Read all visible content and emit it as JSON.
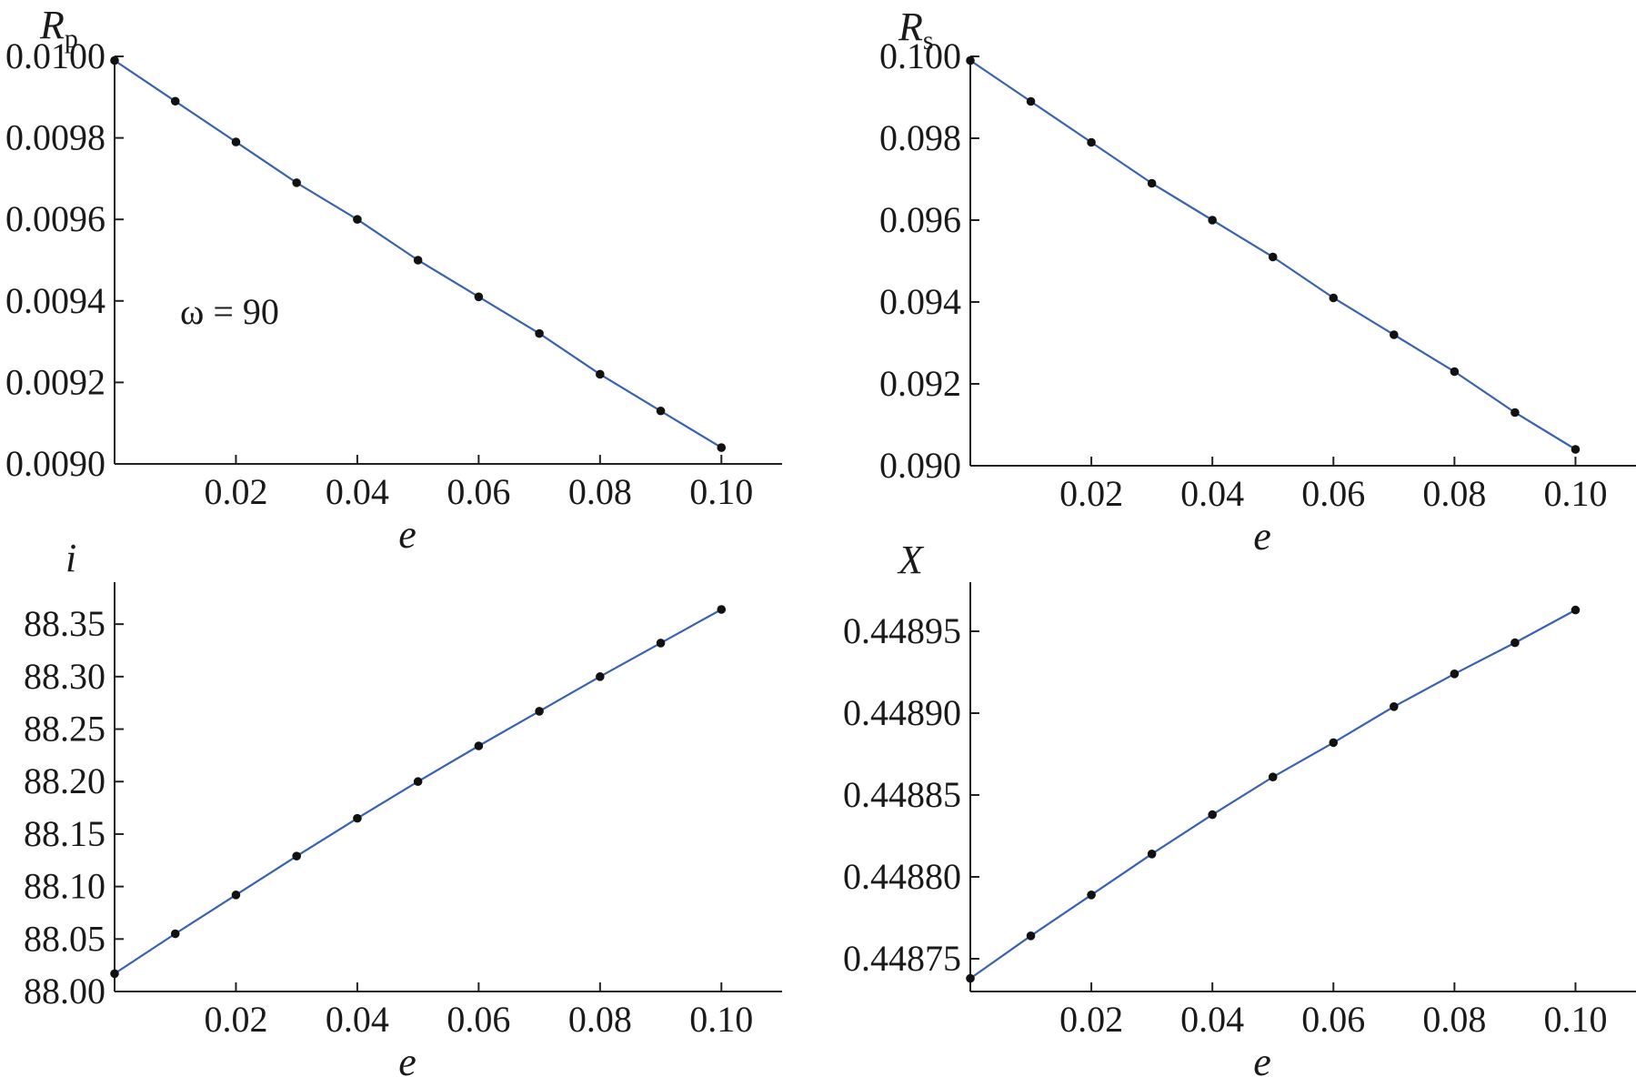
{
  "chart_data": [
    {
      "type": "line",
      "ylabel": "R",
      "ylabel_sub": "p",
      "xlabel": "e",
      "annotation": "ω = 90",
      "xlim": [
        0,
        0.11
      ],
      "ylim": [
        0.009,
        0.01
      ],
      "xticks": [
        0.02,
        0.04,
        0.06,
        0.08,
        0.1
      ],
      "xtick_labels": [
        "0.02",
        "0.04",
        "0.06",
        "0.08",
        "0.10"
      ],
      "yticks": [
        0.009,
        0.0092,
        0.0094,
        0.0096,
        0.0098,
        0.01
      ],
      "ytick_labels": [
        "0.0090",
        "0.0092",
        "0.0094",
        "0.0096",
        "0.0098",
        "0.0100"
      ],
      "series": [
        {
          "color": "#3a62b3",
          "x": [
            0.0,
            0.01,
            0.02,
            0.03,
            0.04,
            0.05,
            0.06,
            0.07,
            0.08,
            0.09,
            0.1
          ],
          "values": [
            0.00999,
            0.00989,
            0.00979,
            0.00969,
            0.0096,
            0.0095,
            0.00941,
            0.00932,
            0.00922,
            0.00913,
            0.00904
          ]
        }
      ]
    },
    {
      "type": "line",
      "ylabel": "R",
      "ylabel_sub": "s",
      "xlabel": "e",
      "xlim": [
        0,
        0.11
      ],
      "ylim": [
        0.09,
        0.1
      ],
      "xticks": [
        0.02,
        0.04,
        0.06,
        0.08,
        0.1
      ],
      "xtick_labels": [
        "0.02",
        "0.04",
        "0.06",
        "0.08",
        "0.10"
      ],
      "yticks": [
        0.09,
        0.092,
        0.094,
        0.096,
        0.098,
        0.1
      ],
      "ytick_labels": [
        "0.090",
        "0.092",
        "0.094",
        "0.096",
        "0.098",
        "0.100"
      ],
      "series": [
        {
          "color": "#3a62b3",
          "x": [
            0.0,
            0.01,
            0.02,
            0.03,
            0.04,
            0.05,
            0.06,
            0.07,
            0.08,
            0.09,
            0.1
          ],
          "values": [
            0.0999,
            0.0989,
            0.0979,
            0.0969,
            0.096,
            0.0951,
            0.0941,
            0.0932,
            0.0923,
            0.0913,
            0.0904
          ]
        }
      ]
    },
    {
      "type": "line",
      "ylabel": "i",
      "ylabel_sub": "",
      "xlabel": "e",
      "xlim": [
        0,
        0.11
      ],
      "ylim": [
        88.0,
        88.39
      ],
      "xticks": [
        0.02,
        0.04,
        0.06,
        0.08,
        0.1
      ],
      "xtick_labels": [
        "0.02",
        "0.04",
        "0.06",
        "0.08",
        "0.10"
      ],
      "yticks": [
        88.0,
        88.05,
        88.1,
        88.15,
        88.2,
        88.25,
        88.3,
        88.35
      ],
      "ytick_labels": [
        "88.00",
        "88.05",
        "88.10",
        "88.15",
        "88.20",
        "88.25",
        "88.30",
        "88.35"
      ],
      "series": [
        {
          "color": "#3a62b3",
          "x": [
            0.0,
            0.01,
            0.02,
            0.03,
            0.04,
            0.05,
            0.06,
            0.07,
            0.08,
            0.09,
            0.1
          ],
          "values": [
            88.017,
            88.055,
            88.092,
            88.129,
            88.165,
            88.2,
            88.234,
            88.267,
            88.3,
            88.332,
            88.364
          ]
        }
      ]
    },
    {
      "type": "line",
      "ylabel": "X",
      "ylabel_sub": "",
      "xlabel": "e",
      "xlim": [
        0,
        0.11
      ],
      "ylim": [
        0.44873,
        0.44898
      ],
      "xticks": [
        0.02,
        0.04,
        0.06,
        0.08,
        0.1
      ],
      "xtick_labels": [
        "0.02",
        "0.04",
        "0.06",
        "0.08",
        "0.10"
      ],
      "yticks": [
        0.44875,
        0.4488,
        0.44885,
        0.4489,
        0.44895
      ],
      "ytick_labels": [
        "0.44875",
        "0.44880",
        "0.44885",
        "0.44890",
        "0.44895"
      ],
      "series": [
        {
          "color": "#3a62b3",
          "x": [
            0.0,
            0.01,
            0.02,
            0.03,
            0.04,
            0.05,
            0.06,
            0.07,
            0.08,
            0.09,
            0.1
          ],
          "values": [
            0.448738,
            0.448764,
            0.448789,
            0.448814,
            0.448838,
            0.448861,
            0.448882,
            0.448904,
            0.448924,
            0.448943,
            0.448963
          ]
        }
      ]
    }
  ]
}
